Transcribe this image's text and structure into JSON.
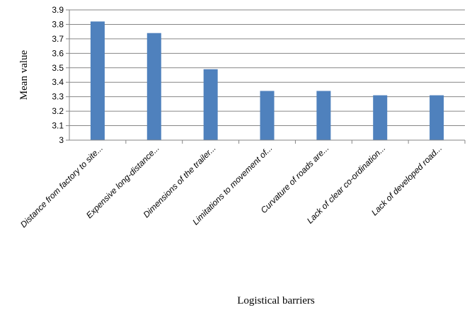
{
  "chart_data": {
    "type": "bar",
    "categories": [
      "Distance from factory to site...",
      "Expensive long-distance...",
      "Dimensions of the trailer...",
      "Limitations to movement of...",
      "Curvature of roads are...",
      "Lack of clear co-ordination...",
      "Lack of developed road..."
    ],
    "values": [
      3.82,
      3.74,
      3.49,
      3.34,
      3.34,
      3.31,
      3.31
    ],
    "title": "",
    "xlabel": "Logistical barriers",
    "ylabel": "Mean value",
    "ylim": [
      3,
      3.9
    ],
    "yticks": [
      "3",
      "3.1",
      "3.2",
      "3.3",
      "3.4",
      "3.5",
      "3.6",
      "3.7",
      "3.8",
      "3.9"
    ],
    "grid": true,
    "colors": {
      "bar": "#4f81bd",
      "grid": "#868686",
      "axis": "#868686"
    }
  }
}
